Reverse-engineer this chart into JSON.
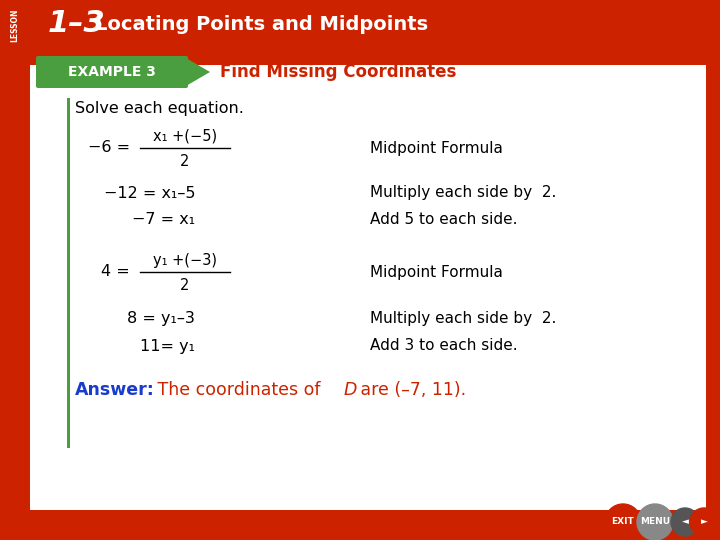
{
  "header_bg_color": "#cc2200",
  "header_text_color": "#ffffff",
  "header_num": "1–3",
  "header_title": "Locating Points and Midpoints",
  "example_bg_color": "#4a9e3f",
  "example_label": "EXAMPLE 3",
  "example_title": "Find Missing Coordinates",
  "example_title_color": "#cc2200",
  "main_bg_color": "#d0d0d0",
  "body_bg_color": "#ffffff",
  "solve_text": "Solve each equation.",
  "eq1_label": "Midpoint Formula",
  "eq2_text": "−12 = x₁–5",
  "eq2_label": "Multiply each side by  2.",
  "eq3_text": "−7 = x₁",
  "eq3_label": "Add 5 to each side.",
  "eq4_label": "Midpoint Formula",
  "eq5_text": "8 = y₁–3",
  "eq5_label": "Multiply each side by  2.",
  "eq6_text": "11= y₁",
  "eq6_label": "Add 3 to each side.",
  "answer_bold": "Answer:",
  "answer_color": "#cc2200",
  "answer_bold_color": "#1a3ccc",
  "sidebar_color": "#cc2200",
  "green_line_color": "#4a9e3f",
  "btn_exit_color": "#cc2200",
  "btn_menu_color": "#888888",
  "btn_back_color": "#555555",
  "btn_fwd_color": "#cc2200"
}
